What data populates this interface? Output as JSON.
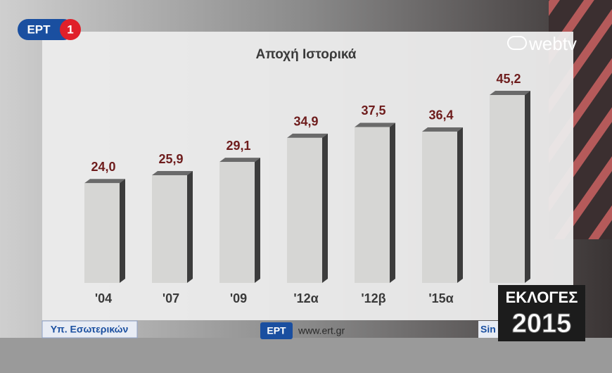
{
  "chart_data": {
    "type": "bar",
    "title": "Αποχή Ιστορικά",
    "categories": [
      "'04",
      "'07",
      "'09",
      "'12α",
      "'12β",
      "'15α",
      null
    ],
    "values": [
      24.0,
      25.9,
      29.1,
      34.9,
      37.5,
      36.4,
      45.2
    ],
    "value_labels": [
      "24,0",
      "25,9",
      "29,1",
      "34,9",
      "37,5",
      "36,4",
      "45,2"
    ],
    "color": "#d6d6d4"
  },
  "broadcast": {
    "channel": "ΕΡΤ",
    "channel_number": "1",
    "webtv": "webtv",
    "source": "Υπ. Εσωτερικών",
    "footer_logo": "ΕΡΤ",
    "footer_url": "www.ert.gr",
    "partner": "Sin",
    "election_title": "ΕΚΛΟΓΕΣ",
    "election_year": "2015"
  }
}
